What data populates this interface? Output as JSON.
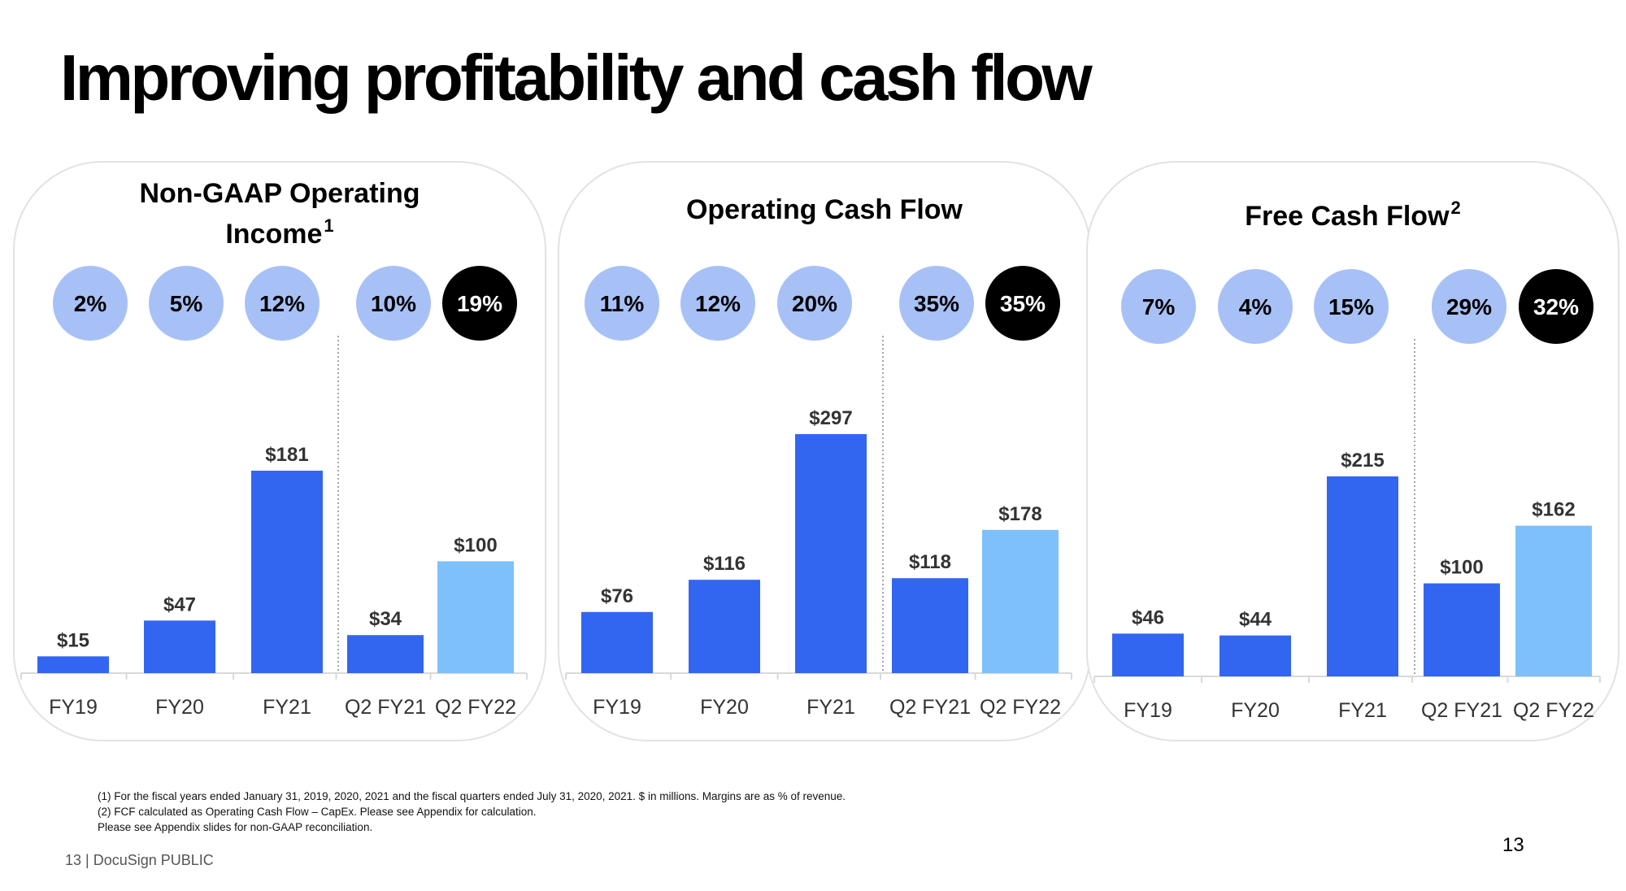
{
  "slide": {
    "title": "Improving profitability and cash flow",
    "footnotes": [
      "(1)  For the fiscal years ended January 31, 2019, 2020, 2021 and the fiscal quarters ended July 31, 2020, 2021. $ in millions.  Margins are as % of revenue.",
      "(2)  FCF calculated as Operating Cash Flow – CapEx. Please see Appendix for calculation.",
      " Please see Appendix slides for non-GAAP reconciliation."
    ],
    "footer": "13  |  DocuSign PUBLIC",
    "page_number": "13"
  },
  "colors": {
    "annual_bar": "#3366f0",
    "q2fy21_bar": "#3366f0",
    "q2fy22_bar": "#7ec0fb",
    "margin_bubble": "#a7c1f7",
    "latest_bubble": "#000000",
    "panel_border": "#e2e2e2"
  },
  "chart_data": [
    {
      "type": "bar",
      "title": "Non-GAAP Operating Income",
      "title_lines": [
        "Non-GAAP Operating",
        "Income"
      ],
      "title_footnote": "1",
      "categories": [
        "FY19",
        "FY20",
        "FY21",
        "Q2 FY21",
        "Q2 FY22"
      ],
      "values": [
        15,
        47,
        181,
        34,
        100
      ],
      "value_labels": [
        "$15",
        "$47",
        "$181",
        "$34",
        "$100"
      ],
      "margins": [
        "2%",
        "5%",
        "12%",
        "10%",
        "19%"
      ],
      "unit": "$ in millions",
      "ylim": [
        0,
        181
      ],
      "grid": false,
      "legend": "none"
    },
    {
      "type": "bar",
      "title": "Operating Cash Flow",
      "title_lines": [
        "Operating Cash Flow"
      ],
      "title_footnote": "",
      "categories": [
        "FY19",
        "FY20",
        "FY21",
        "Q2 FY21",
        "Q2 FY22"
      ],
      "values": [
        76,
        116,
        297,
        118,
        178
      ],
      "value_labels": [
        "$76",
        "$116",
        "$297",
        "$118",
        "$178"
      ],
      "margins": [
        "11%",
        "12%",
        "20%",
        "35%",
        "35%"
      ],
      "unit": "$ in millions",
      "ylim": [
        0,
        297
      ],
      "grid": false,
      "legend": "none"
    },
    {
      "type": "bar",
      "title": "Free Cash Flow",
      "title_lines": [
        "Free Cash Flow"
      ],
      "title_footnote": "2",
      "categories": [
        "FY19",
        "FY20",
        "FY21",
        "Q2 FY21",
        "Q2 FY22"
      ],
      "values": [
        46,
        44,
        215,
        100,
        162
      ],
      "value_labels": [
        "$46",
        "$44",
        "$215",
        "$100",
        "$162"
      ],
      "margins": [
        "7%",
        "4%",
        "15%",
        "29%",
        "32%"
      ],
      "unit": "$ in millions",
      "ylim": [
        0,
        215
      ],
      "grid": false,
      "legend": "none"
    }
  ]
}
